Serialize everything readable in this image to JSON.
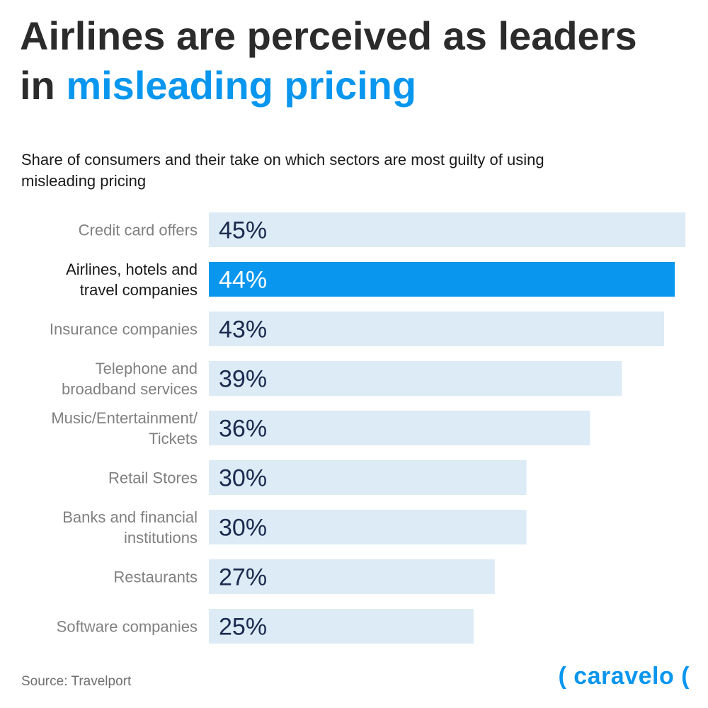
{
  "title": {
    "line1": "Airlines are perceived as leaders",
    "line2_prefix": "in ",
    "line2_accent": "misleading pricing"
  },
  "subtitle": "Share of consumers and their take on which sectors are most guilty of using misleading pricing",
  "source": "Source: Travelport",
  "logo": "( caravelo (",
  "colors": {
    "accent": "#0996ee",
    "bar": "#dcebf6",
    "highlight_bar": "#0996ee",
    "value_text": "#1b2a4e",
    "highlight_value_text": "#ffffff",
    "label_text": "#808080",
    "highlight_label_text": "#1a1a1a"
  },
  "chart_data": {
    "type": "bar",
    "orientation": "horizontal",
    "categories": [
      [
        "Credit card offers"
      ],
      [
        "Airlines, hotels and",
        "travel companies"
      ],
      [
        "Insurance companies"
      ],
      [
        "Telephone and",
        "broadband services"
      ],
      [
        "Music/Entertainment/",
        "Tickets"
      ],
      [
        "Retail Stores"
      ],
      [
        "Banks and financial",
        "institutions"
      ],
      [
        "Restaurants"
      ],
      [
        "Software companies"
      ]
    ],
    "values": [
      45,
      44,
      43,
      39,
      36,
      30,
      30,
      27,
      25
    ],
    "value_labels": [
      "45%",
      "44%",
      "43%",
      "39%",
      "36%",
      "30%",
      "30%",
      "27%",
      "25%"
    ],
    "highlight_index": 1,
    "unit": "%",
    "xlim": [
      0,
      45
    ],
    "grid": false,
    "legend": "none"
  }
}
